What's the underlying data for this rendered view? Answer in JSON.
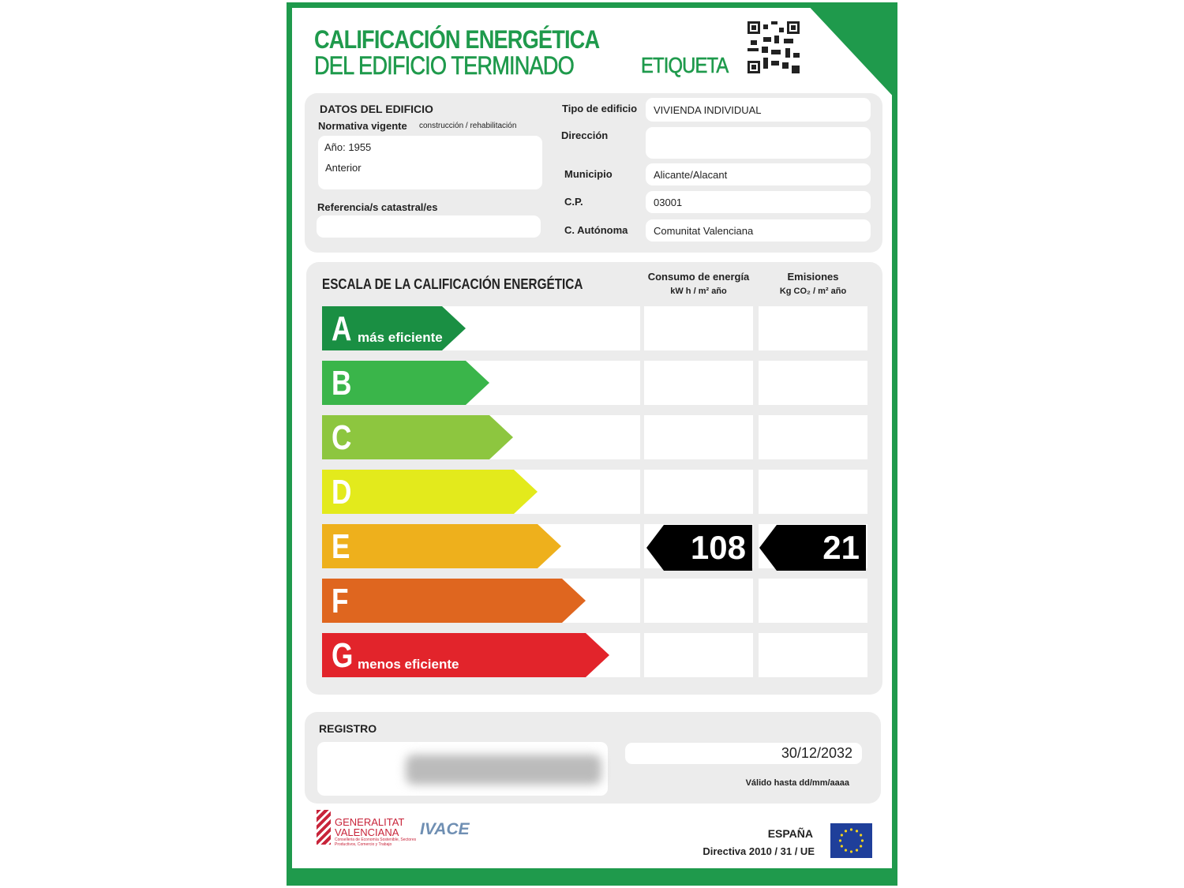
{
  "header": {
    "title_line1": "CALIFICACIÓN ENERGÉTICA",
    "title_line2": "DEL EDIFICIO  TERMINADO",
    "label": "ETIQUETA"
  },
  "building": {
    "section_title": "DATOS DEL EDIFICIO",
    "normativa_label": "Normativa vigente",
    "normativa_hint": "construcción / rehabilitación",
    "year": "Año: 1955",
    "normativa_value": "Anterior",
    "catastral_label": "Referencia/s catastral/es",
    "catastral_value": "",
    "fields": [
      {
        "label": "Tipo de edificio",
        "value": "VIVIENDA INDIVIDUAL"
      },
      {
        "label": "Dirección",
        "value": ""
      },
      {
        "label": "Municipio",
        "value": "Alicante/Alacant"
      },
      {
        "label": "C.P.",
        "value": "03001"
      },
      {
        "label": "C. Autónoma",
        "value": "Comunitat Valenciana"
      }
    ]
  },
  "scale": {
    "title": "ESCALA DE LA CALIFICACIÓN ENERGÉTICA",
    "col1": "Consumo de energía",
    "col1_unit": "kW h / m² año",
    "col2": "Emisiones",
    "col2_unit": "Kg CO₂ / m² año",
    "classes": [
      {
        "letter": "A",
        "sub": "más eficiente",
        "color": "#1a8f43"
      },
      {
        "letter": "B",
        "sub": "",
        "color": "#3ab54a"
      },
      {
        "letter": "C",
        "sub": "",
        "color": "#8dc63f"
      },
      {
        "letter": "D",
        "sub": "",
        "color": "#e3ea1c"
      },
      {
        "letter": "E",
        "sub": "",
        "color": "#eeb01c"
      },
      {
        "letter": "F",
        "sub": "",
        "color": "#df661f"
      },
      {
        "letter": "G",
        "sub": "menos eficiente",
        "color": "#e2242b"
      }
    ],
    "rating_class": "E",
    "consumption": "108",
    "emissions": "21"
  },
  "registro": {
    "title": "REGISTRO",
    "valid_until": "30/12/2032",
    "valid_label": "Válido hasta dd/mm/aaaa"
  },
  "footer": {
    "gv1": "GENERALITAT",
    "gv2": "VALENCIANA",
    "gv_sub": "Conselleria de Economía Sostenible, Sectores Productivos, Comercio y Trabajo",
    "ivace": "IVACE",
    "country": "ESPAÑA",
    "directive": "Directiva 2010 / 31 / UE"
  }
}
